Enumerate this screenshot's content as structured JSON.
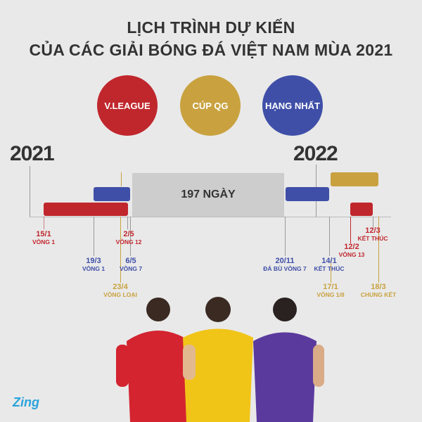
{
  "title": {
    "line1": "LỊCH TRÌNH DỰ KIẾN",
    "line2": "CỦA CÁC GIẢI BÓNG ĐÁ VIỆT NAM MÙA 2021"
  },
  "legend": [
    {
      "label": "V.LEAGUE",
      "color": "#c0272d"
    },
    {
      "label": "CÚP QG",
      "color": "#c9a23f"
    },
    {
      "label": "HẠNG NHẤT",
      "color": "#3f4fa8"
    }
  ],
  "years": {
    "start": "2021",
    "end": "2022"
  },
  "gap": {
    "label": "197 NGÀY"
  },
  "milestones": [
    {
      "date": "15/1",
      "text": "VÒNG 1",
      "league": "V.LEAGUE"
    },
    {
      "date": "19/3",
      "text": "VÒNG 1",
      "league": "HẠNG NHẤT"
    },
    {
      "date": "2/5",
      "text": "VÒNG 12",
      "league": "V.LEAGUE"
    },
    {
      "date": "6/5",
      "text": "VÒNG 7",
      "league": "HẠNG NHẤT"
    },
    {
      "date": "23/4",
      "text": "VÒNG LOẠI",
      "league": "CÚP QG"
    },
    {
      "date": "20/11",
      "text": "ĐÁ BÙ VÒNG 7",
      "league": "HẠNG NHẤT"
    },
    {
      "date": "14/1",
      "text": "KẾT THÚC",
      "league": "HẠNG NHẤT"
    },
    {
      "date": "17/1",
      "text": "VÒNG 1/8",
      "league": "CÚP QG"
    },
    {
      "date": "12/2",
      "text": "VÒNG 13",
      "league": "V.LEAGUE"
    },
    {
      "date": "12/3",
      "text": "KẾT THÚC",
      "league": "V.LEAGUE"
    },
    {
      "date": "18/3",
      "text": "CHUNG KẾT",
      "league": "CÚP QG"
    }
  ],
  "logo": "Zing"
}
